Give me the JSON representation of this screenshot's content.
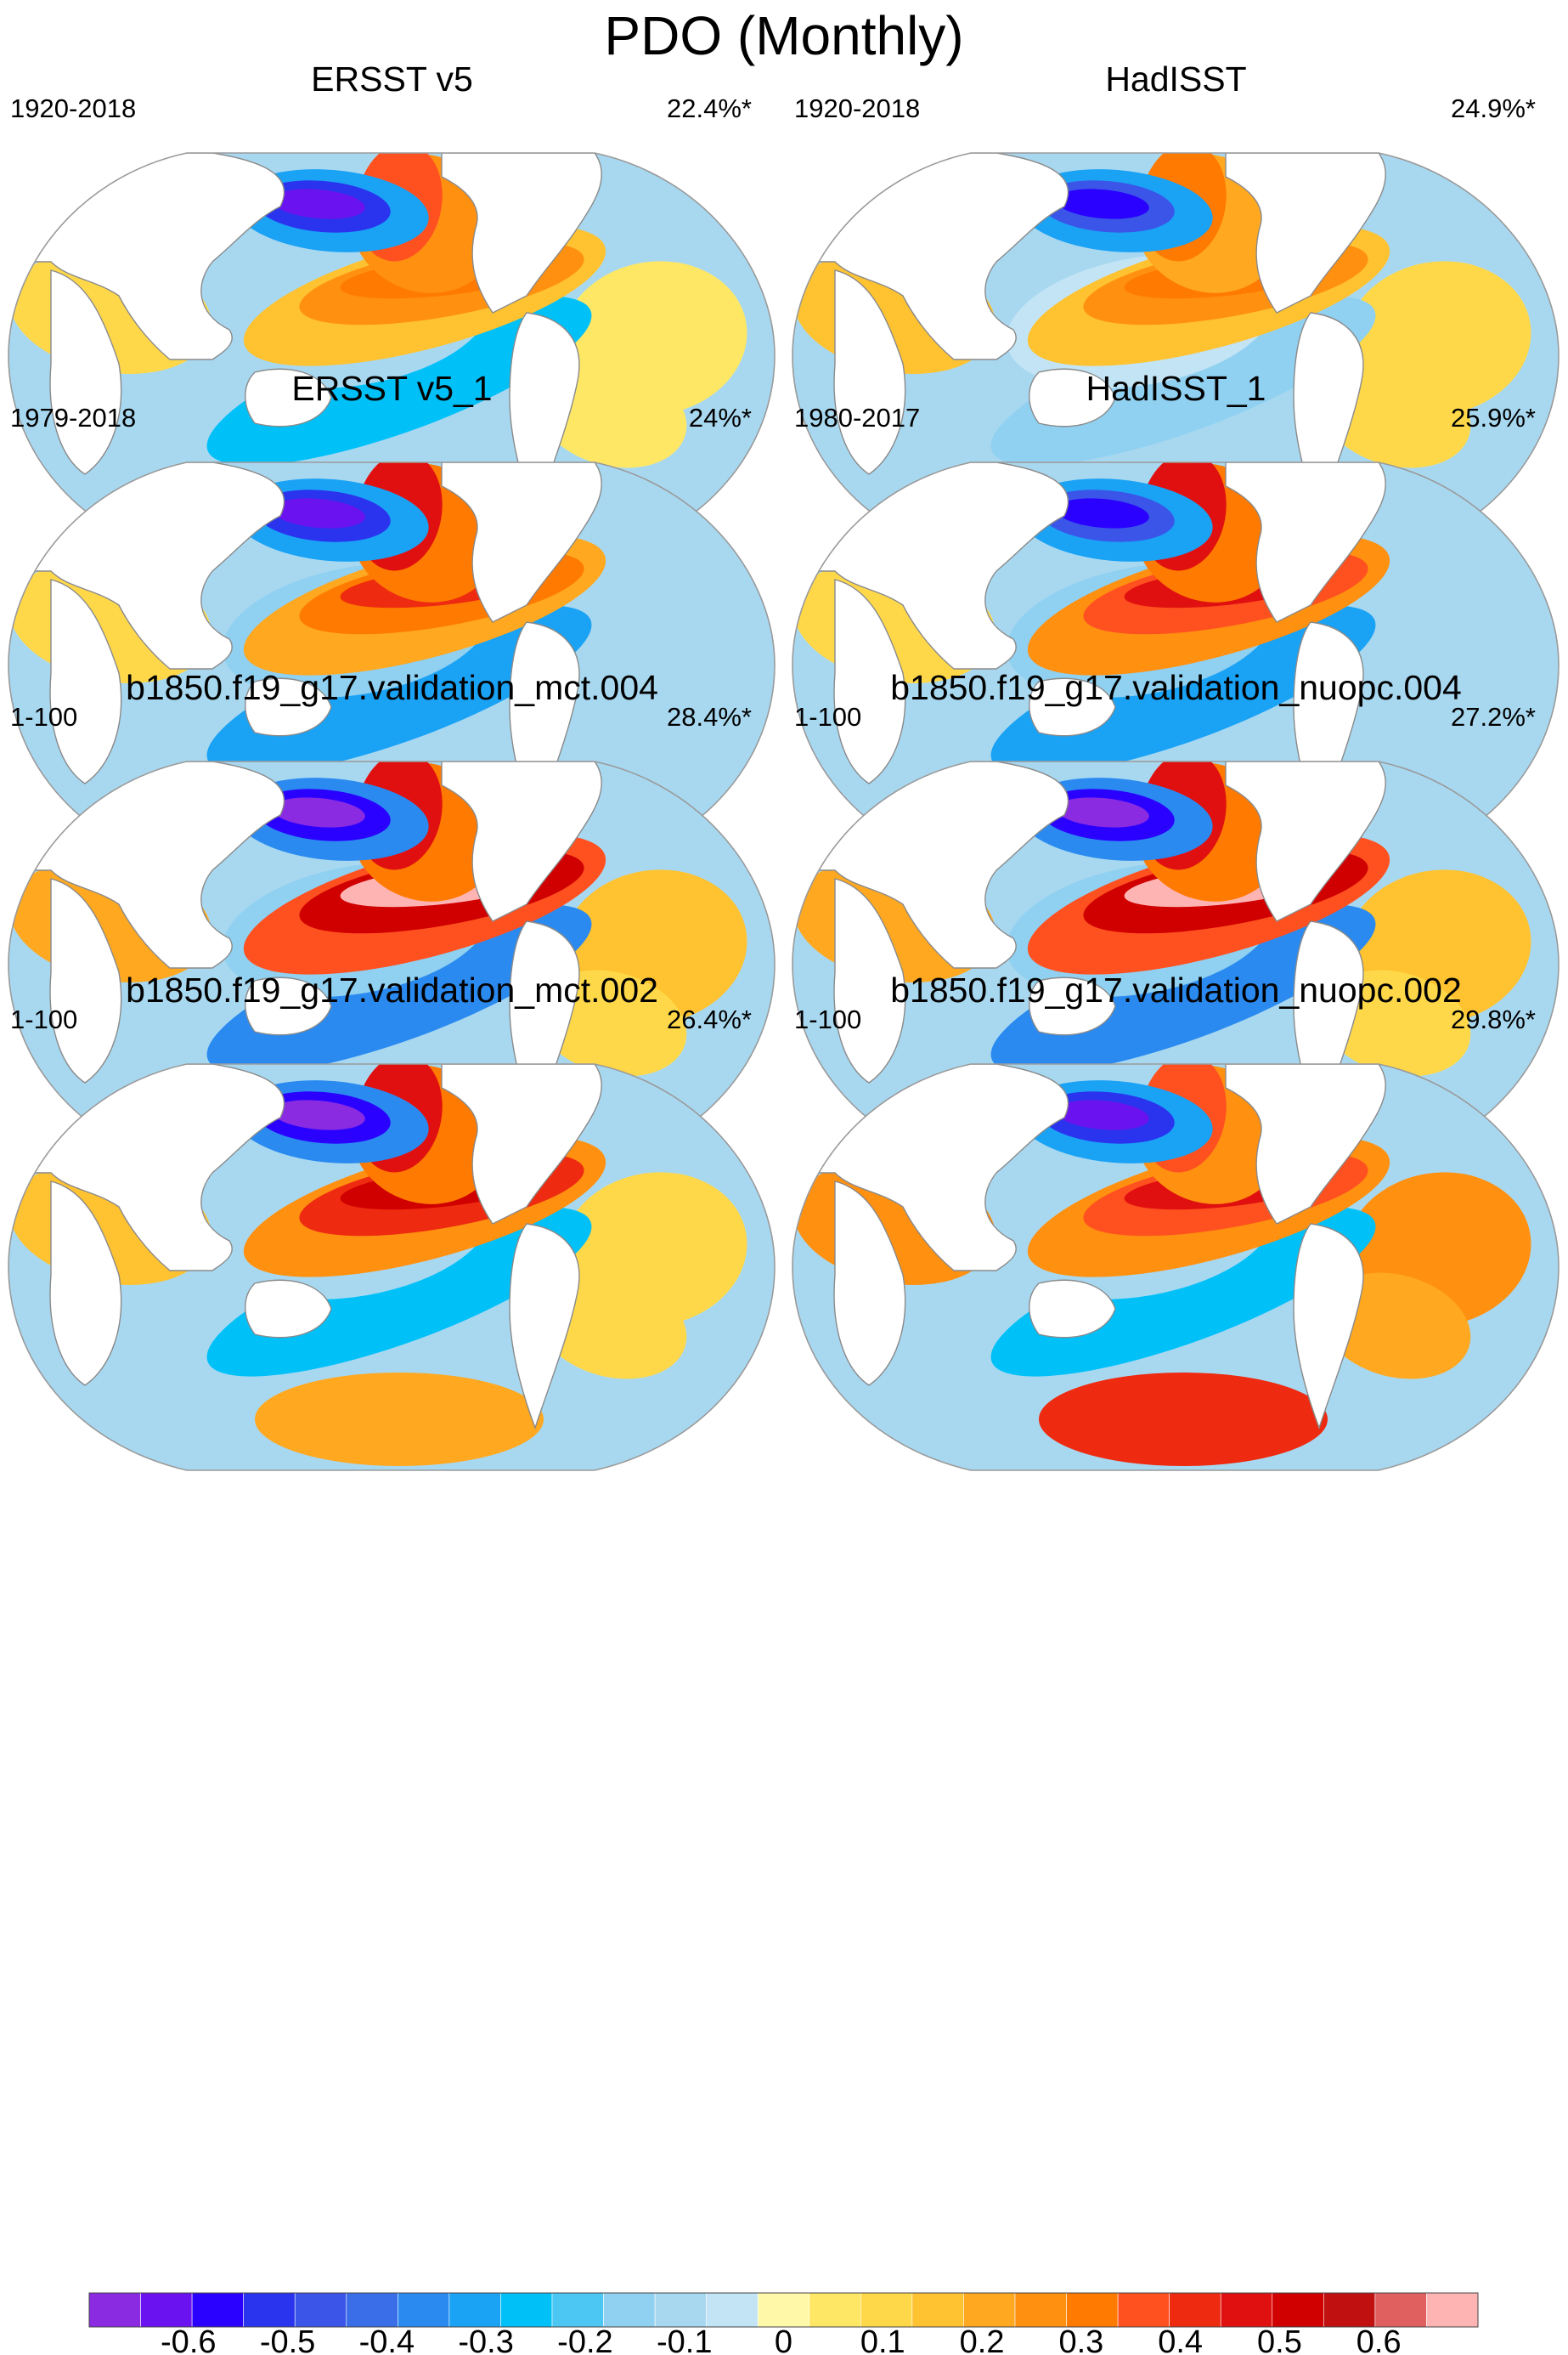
{
  "title": "PDO (Monthly)",
  "chart_data": {
    "type": "heatmap",
    "projection": "Robinson (Pacific-centered world map)",
    "variable": "PDO regression pattern on SST",
    "panels": [
      {
        "title": "ERSST v5",
        "period": "1920-2018",
        "variance_explained": "22.4%*",
        "features": {
          "north_pacific": -0.6,
          "tropical_pacific": 0.3,
          "north_american_coast": 0.35,
          "south_pacific": -0.25,
          "south_arc": 0.15,
          "indian_ocean": 0.1,
          "atlantic": 0.05
        }
      },
      {
        "title": "HadISST",
        "period": "1920-2018",
        "variance_explained": "24.9%*",
        "features": {
          "north_pacific": -0.55,
          "tropical_pacific": 0.3,
          "north_american_coast": 0.3,
          "south_pacific": -0.15,
          "south_arc": 0.1,
          "indian_ocean": 0.15,
          "atlantic": 0.1
        }
      },
      {
        "title": "ERSST v5_1",
        "period": "1979-2018",
        "variance_explained": "24%*",
        "features": {
          "north_pacific": -0.6,
          "tropical_pacific": 0.4,
          "north_american_coast": 0.45,
          "south_pacific": -0.3,
          "south_arc": 0.2,
          "indian_ocean": 0.1,
          "atlantic": -0.1
        }
      },
      {
        "title": "HadISST_1",
        "period": "1980-2017",
        "variance_explained": "25.9%*",
        "features": {
          "north_pacific": -0.55,
          "tropical_pacific": 0.45,
          "north_american_coast": 0.45,
          "south_pacific": -0.3,
          "south_arc": 0.15,
          "indian_ocean": 0.1,
          "atlantic": -0.1
        }
      },
      {
        "title": "b1850.f19_g17.validation_mct.004",
        "period": "1-100",
        "variance_explained": "28.4%*",
        "features": {
          "north_pacific": -0.65,
          "tropical_pacific": 0.65,
          "north_american_coast": 0.45,
          "south_pacific": -0.35,
          "south_arc": 0.3,
          "indian_ocean": 0.2,
          "atlantic": 0.15
        }
      },
      {
        "title": "b1850.f19_g17.validation_nuopc.004",
        "period": "1-100",
        "variance_explained": "27.2%*",
        "features": {
          "north_pacific": -0.65,
          "tropical_pacific": 0.65,
          "north_american_coast": 0.45,
          "south_pacific": -0.35,
          "south_arc": 0.35,
          "indian_ocean": 0.2,
          "atlantic": 0.15
        }
      },
      {
        "title": "b1850.f19_g17.validation_mct.002",
        "period": "1-100",
        "variance_explained": "26.4%*",
        "features": {
          "north_pacific": -0.65,
          "tropical_pacific": 0.5,
          "north_american_coast": 0.45,
          "south_pacific": -0.25,
          "south_arc": 0.2,
          "indian_ocean": 0.15,
          "atlantic": 0.1
        }
      },
      {
        "title": "b1850.f19_g17.validation_nuopc.002",
        "period": "1-100",
        "variance_explained": "29.8%*",
        "features": {
          "north_pacific": -0.6,
          "tropical_pacific": 0.45,
          "north_american_coast": 0.35,
          "south_pacific": -0.25,
          "south_arc": 0.4,
          "indian_ocean": 0.25,
          "atlantic": 0.25
        }
      }
    ],
    "colorbar": {
      "orientation": "horizontal",
      "placement": "bottom",
      "tick_labels": [
        "-0.6",
        "-0.5",
        "-0.4",
        "-0.3",
        "-0.2",
        "-0.1",
        "0",
        "0.1",
        "0.2",
        "0.3",
        "0.4",
        "0.5",
        "0.6"
      ],
      "tick_values": [
        -0.6,
        -0.5,
        -0.4,
        -0.3,
        -0.2,
        -0.1,
        0,
        0.1,
        0.2,
        0.3,
        0.4,
        0.5,
        0.6
      ],
      "range": [
        -0.7,
        0.7
      ],
      "colors": [
        "#8a2be2",
        "#6a12f0",
        "#2a00ff",
        "#2a33ee",
        "#3a55e8",
        "#3a6ee8",
        "#2a8af0",
        "#1aa2f5",
        "#00c0f8",
        "#4cc6f2",
        "#90d0f0",
        "#a8d8f0",
        "#c2e4f4",
        "#fff8a8",
        "#ffe766",
        "#ffd84a",
        "#ffc230",
        "#ffa820",
        "#ff9010",
        "#ff7a00",
        "#ff5020",
        "#ee2a10",
        "#e01010",
        "#d00000",
        "#c01010",
        "#e06060",
        "#ffb4b4"
      ]
    }
  }
}
